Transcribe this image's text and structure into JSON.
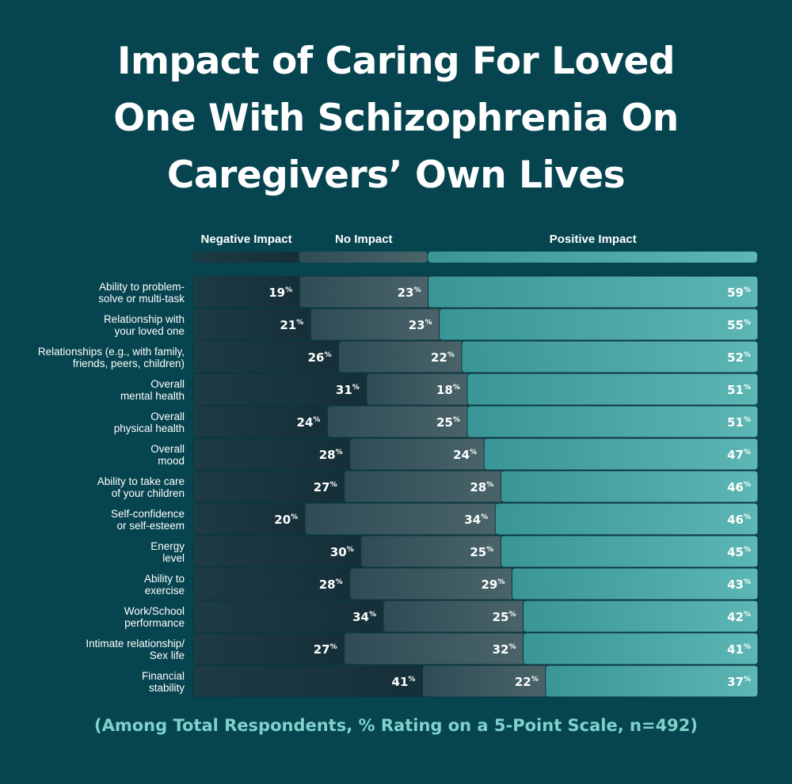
{
  "title": {
    "line1": "Impact of Caring For Loved",
    "line2": "One With Schizophrenia On",
    "line3": "Caregivers’ Own Lives"
  },
  "footnote": "(Among Total Respondents, % Rating on a 5-Point Scale, n=492)",
  "colors": {
    "background": "#06444f",
    "negative": "#1a3944",
    "no_impact": "#3a5a61",
    "positive_start": "#3a9596",
    "positive_end": "#5cb6b4",
    "footnote": "#7fd1cc"
  },
  "chart_data": {
    "type": "bar",
    "orientation": "horizontal-stacked",
    "title": "Impact of Caring For Loved One With Schizophrenia On Caregivers’ Own Lives",
    "subtitle": "(Among Total Respondents, % Rating on a 5-Point Scale, n=492)",
    "legend_position": "top",
    "unit": "%",
    "xlim": [
      0,
      101
    ],
    "categories": [
      [
        "Ability to problem-",
        "solve or multi-task"
      ],
      [
        "Relationship with",
        "your loved one"
      ],
      [
        "Relationships (e.g., with family,",
        "friends, peers, children)"
      ],
      [
        "Overall",
        "mental health"
      ],
      [
        "Overall",
        "physical health"
      ],
      [
        "Overall",
        "mood"
      ],
      [
        "Ability to take care",
        "of your children"
      ],
      [
        "Self-confidence",
        "or self-esteem"
      ],
      [
        "Energy",
        "level"
      ],
      [
        "Ability to",
        "exercise"
      ],
      [
        "Work/School",
        "performance"
      ],
      [
        "Intimate relationship/",
        "Sex life"
      ],
      [
        "Financial",
        "stability"
      ]
    ],
    "series": [
      {
        "name": "Negative Impact",
        "values": [
          19,
          21,
          26,
          31,
          24,
          28,
          27,
          20,
          30,
          28,
          34,
          27,
          41
        ]
      },
      {
        "name": "No Impact",
        "values": [
          23,
          23,
          22,
          18,
          25,
          24,
          28,
          34,
          25,
          29,
          25,
          32,
          22
        ]
      },
      {
        "name": "Positive Impact",
        "values": [
          59,
          55,
          52,
          51,
          51,
          47,
          46,
          46,
          45,
          43,
          42,
          41,
          37
        ]
      }
    ]
  }
}
